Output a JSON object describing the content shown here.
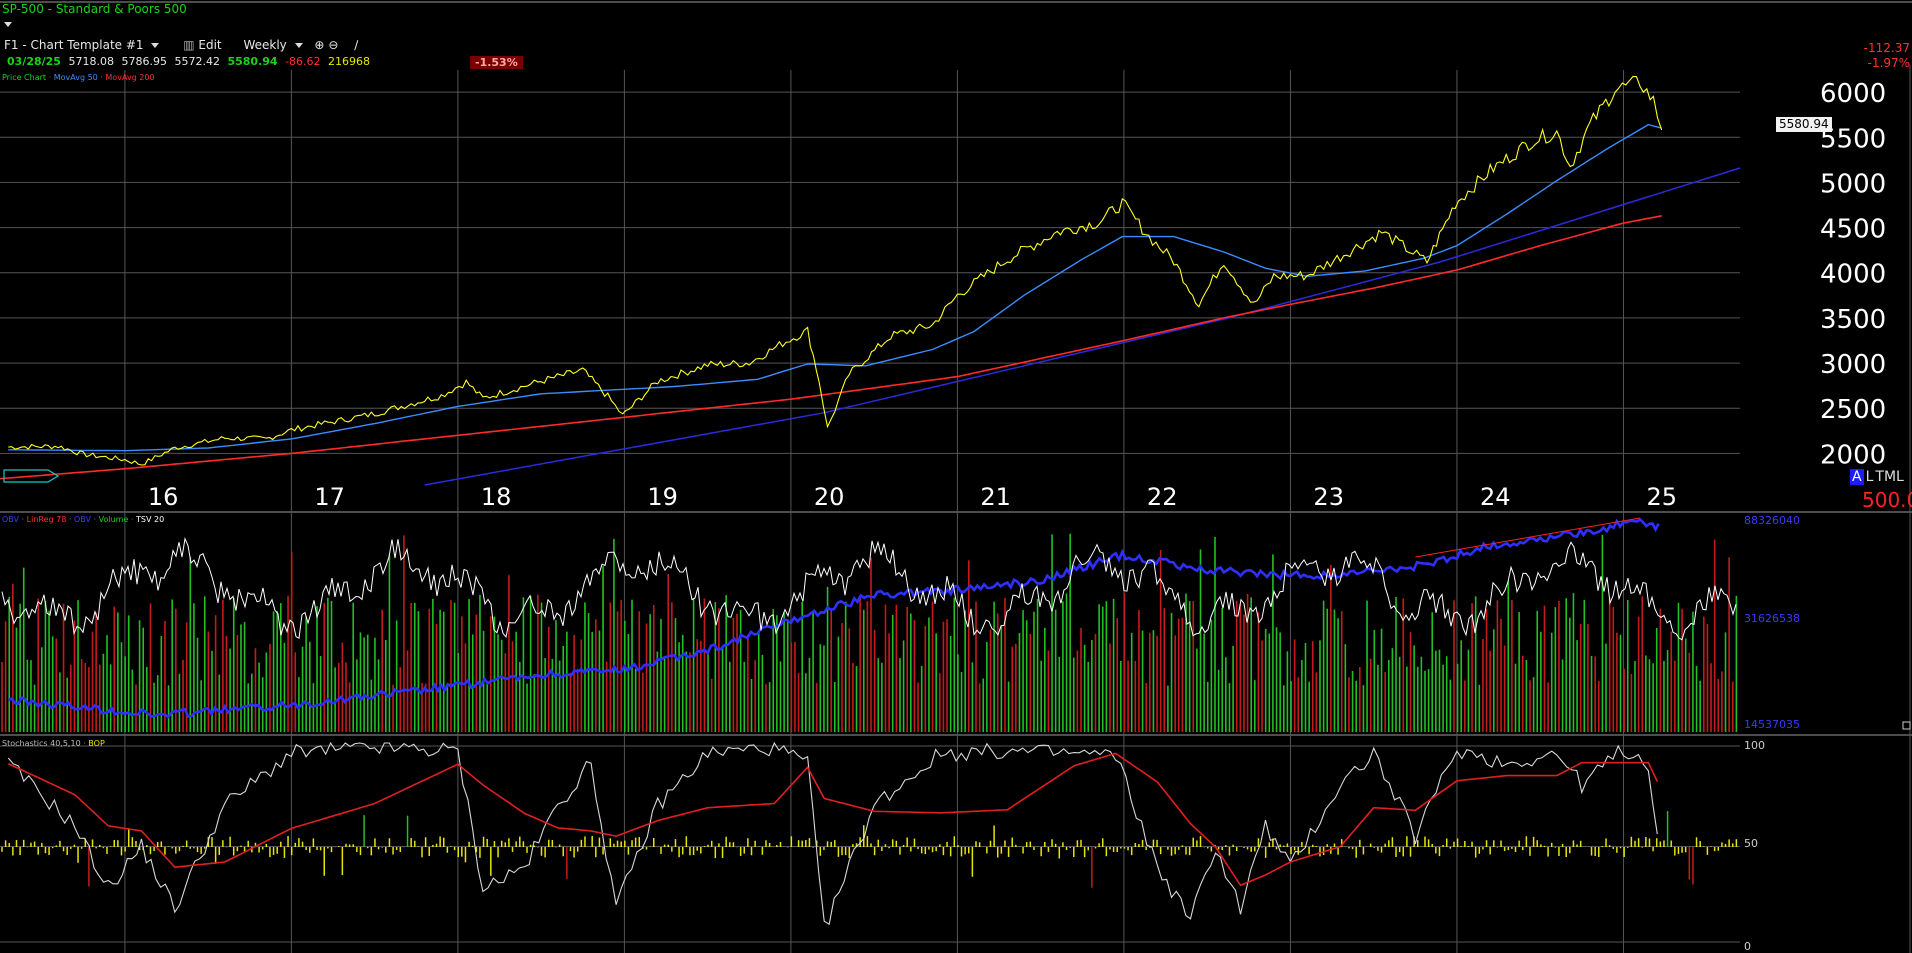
{
  "header": {
    "symbol": "SP-500",
    "name": "Standard & Poors 500",
    "template": "F1 - Chart Template #1",
    "edit_label": "Edit",
    "period": "Weekly",
    "quote": {
      "date": "03/28/25",
      "open": "5718.08",
      "high": "5786.95",
      "low": "5572.42",
      "close": "5580.94",
      "change": "-86.62",
      "volume": "216968",
      "pct_badge": "-1.53%"
    },
    "right_change": "-112.37",
    "right_pct": "-1.97%",
    "last_price_tag": "5580.94",
    "scale_tag_a": "A",
    "scale_tag_b": "L",
    "scale_tag_c": "TML",
    "scale_tag_red": "500.0"
  },
  "panel_labels": {
    "price": [
      {
        "text": "Price Chart",
        "color": "#19d219"
      },
      {
        "text": "MovAvg 50",
        "color": "#3a8cff"
      },
      {
        "text": "MovAvg 200",
        "color": "#ff3030"
      }
    ],
    "volume": [
      {
        "text": "OBV",
        "color": "#3a3aff"
      },
      {
        "text": "LinReg 78",
        "color": "#ff3030"
      },
      {
        "text": "OBV",
        "color": "#3a3aff"
      },
      {
        "text": "Volume",
        "color": "#19d219"
      },
      {
        "text": "TSV 20",
        "color": "#ffffff"
      }
    ],
    "stoch": [
      {
        "text": "Stochastics 40,5,10",
        "color": "#bbbbbb"
      },
      {
        "text": "BOP",
        "color": "#e6e600"
      }
    ]
  },
  "colors": {
    "price": "#ffff22",
    "ma50": "#3a8cff",
    "ma200": "#ff2a2a",
    "trend": "#2b2bdd",
    "obv": "#2f2fff",
    "tsv": "#ffffff",
    "vol_up": "#22c122",
    "vol_down": "#c41c1c",
    "stoch_k": "#d8d8d8",
    "stoch_d": "#e02020",
    "bop": "#e6e600",
    "grid": "#555555"
  },
  "chart_data": [
    {
      "type": "line",
      "panel": "price",
      "y_axis_ticks": [
        "6000",
        "5500",
        "5000",
        "4500",
        "4000",
        "3500",
        "3000",
        "2500",
        "2000"
      ],
      "x_axis_ticks": [
        "16",
        "17",
        "18",
        "19",
        "20",
        "21",
        "22",
        "23",
        "24",
        "25"
      ],
      "ylim": [
        1650,
        6300
      ],
      "xlim": [
        2015.25,
        2025.7
      ],
      "series": [
        {
          "name": "Price Chart",
          "points": [
            [
              2015.3,
              2070
            ],
            [
              2015.6,
              2080
            ],
            [
              2015.75,
              1990
            ],
            [
              2016.0,
              1930
            ],
            [
              2016.1,
              1880
            ],
            [
              2016.3,
              2060
            ],
            [
              2016.6,
              2170
            ],
            [
              2016.85,
              2160
            ],
            [
              2017.0,
              2260
            ],
            [
              2017.5,
              2440
            ],
            [
              2017.9,
              2640
            ],
            [
              2018.05,
              2790
            ],
            [
              2018.15,
              2610
            ],
            [
              2018.5,
              2800
            ],
            [
              2018.75,
              2920
            ],
            [
              2018.9,
              2630
            ],
            [
              2018.99,
              2420
            ],
            [
              2019.2,
              2800
            ],
            [
              2019.5,
              2980
            ],
            [
              2019.75,
              3000
            ],
            [
              2019.95,
              3220
            ],
            [
              2020.1,
              3360
            ],
            [
              2020.17,
              2800
            ],
            [
              2020.22,
              2280
            ],
            [
              2020.35,
              2880
            ],
            [
              2020.6,
              3300
            ],
            [
              2020.85,
              3420
            ],
            [
              2021.0,
              3750
            ],
            [
              2021.3,
              4150
            ],
            [
              2021.6,
              4450
            ],
            [
              2021.85,
              4560
            ],
            [
              2021.99,
              4770
            ],
            [
              2022.15,
              4400
            ],
            [
              2022.3,
              4130
            ],
            [
              2022.45,
              3650
            ],
            [
              2022.6,
              4130
            ],
            [
              2022.78,
              3640
            ],
            [
              2022.9,
              3960
            ],
            [
              2023.1,
              3970
            ],
            [
              2023.3,
              4180
            ],
            [
              2023.55,
              4450
            ],
            [
              2023.82,
              4120
            ],
            [
              2023.99,
              4770
            ],
            [
              2024.2,
              5130
            ],
            [
              2024.45,
              5460
            ],
            [
              2024.6,
              5560
            ],
            [
              2024.68,
              5180
            ],
            [
              2024.8,
              5640
            ],
            [
              2024.95,
              6030
            ],
            [
              2025.1,
              6110
            ],
            [
              2025.18,
              5900
            ],
            [
              2025.23,
              5580
            ]
          ]
        },
        {
          "name": "MovAvg 50",
          "points": [
            [
              2015.3,
              2040
            ],
            [
              2016.0,
              2030
            ],
            [
              2016.5,
              2060
            ],
            [
              2017.0,
              2160
            ],
            [
              2017.5,
              2330
            ],
            [
              2018.0,
              2520
            ],
            [
              2018.5,
              2660
            ],
            [
              2018.9,
              2700
            ],
            [
              2019.3,
              2740
            ],
            [
              2019.8,
              2820
            ],
            [
              2020.1,
              2990
            ],
            [
              2020.45,
              2970
            ],
            [
              2020.85,
              3150
            ],
            [
              2021.1,
              3350
            ],
            [
              2021.4,
              3750
            ],
            [
              2021.75,
              4150
            ],
            [
              2021.99,
              4400
            ],
            [
              2022.3,
              4400
            ],
            [
              2022.6,
              4230
            ],
            [
              2022.85,
              4050
            ],
            [
              2023.1,
              3960
            ],
            [
              2023.45,
              4020
            ],
            [
              2023.8,
              4160
            ],
            [
              2024.0,
              4300
            ],
            [
              2024.3,
              4650
            ],
            [
              2024.6,
              5020
            ],
            [
              2024.9,
              5370
            ],
            [
              2025.15,
              5640
            ],
            [
              2025.23,
              5600
            ]
          ]
        },
        {
          "name": "MovAvg 200",
          "points": [
            [
              2015.25,
              1720
            ],
            [
              2016.0,
              1830
            ],
            [
              2017.0,
              2000
            ],
            [
              2018.0,
              2200
            ],
            [
              2019.0,
              2400
            ],
            [
              2020.0,
              2600
            ],
            [
              2021.0,
              2850
            ],
            [
              2022.0,
              3250
            ],
            [
              2022.6,
              3500
            ],
            [
              2023.0,
              3650
            ],
            [
              2023.5,
              3830
            ],
            [
              2024.0,
              4030
            ],
            [
              2024.5,
              4300
            ],
            [
              2025.0,
              4550
            ],
            [
              2025.23,
              4630
            ]
          ]
        },
        {
          "name": "Trendline",
          "points": [
            [
              2017.8,
              1650
            ],
            [
              2020.2,
              2450
            ],
            [
              2022.65,
              3510
            ],
            [
              2023.9,
              4120
            ],
            [
              2025.7,
              5160
            ]
          ]
        }
      ]
    },
    {
      "type": "bar",
      "panel": "volume",
      "axis_labels": [
        "88326040",
        "31626538",
        "14537035"
      ],
      "series": [
        {
          "name": "Volume",
          "note_values_relative": true
        }
      ]
    },
    {
      "type": "line",
      "panel": "stochastics",
      "axis_labels": [
        "100",
        "50",
        "0"
      ],
      "ylim": [
        0,
        100
      ]
    }
  ]
}
